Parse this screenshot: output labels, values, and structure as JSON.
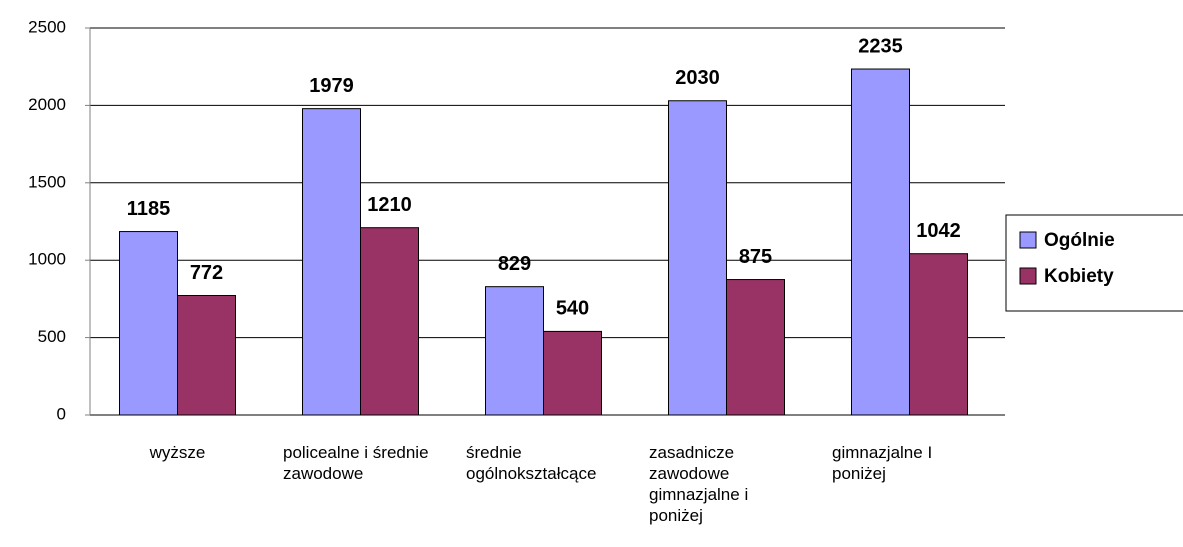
{
  "chart_data": {
    "type": "bar",
    "categories": [
      "wyższe",
      "policealne i średnie zawodowe",
      "średnie ogólnokształcące",
      "zasadnicze zawodowe gimnazjalne i poniżej",
      "gimnazjalne I poniżej"
    ],
    "series": [
      {
        "name": "Ogólnie",
        "color": "#9999ff",
        "values": [
          1185,
          1979,
          829,
          2030,
          2235
        ]
      },
      {
        "name": "Kobiety",
        "color": "#993366",
        "values": [
          772,
          1210,
          540,
          875,
          1042
        ]
      }
    ],
    "ylim": [
      0,
      2500
    ],
    "yticks": [
      0,
      500,
      1000,
      1500,
      2000,
      2500
    ],
    "grid": true,
    "legend": "right"
  }
}
